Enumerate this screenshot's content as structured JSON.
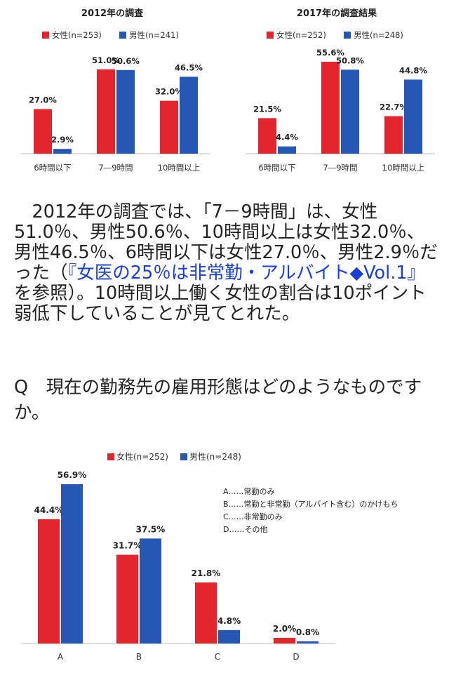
{
  "colors": {
    "female": "#e3262e",
    "male": "#2757b5",
    "axis": "#bfbfbf",
    "link": "#1a3fd6"
  },
  "chart_data": [
    {
      "type": "bar",
      "title": "2012年の調査",
      "categories": [
        "6時間以下",
        "7―9時間",
        "10時間以上"
      ],
      "series": [
        {
          "name": "女性(n=253)",
          "values": [
            27.0,
            51.0,
            32.0
          ],
          "labels": [
            "27.0%",
            "51.0%",
            "32.0%"
          ]
        },
        {
          "name": "男性(n=241)",
          "values": [
            2.9,
            50.6,
            46.5
          ],
          "labels": [
            "2.9%",
            "50.6%",
            "46.5%"
          ]
        }
      ],
      "ylim": [
        0,
        60
      ],
      "legend": "top-center",
      "grid": false
    },
    {
      "type": "bar",
      "title": "2017年の調査結果",
      "categories": [
        "6時間以下",
        "7―9時間",
        "10時間以上"
      ],
      "series": [
        {
          "name": "女性(n=252)",
          "values": [
            21.5,
            55.6,
            22.7
          ],
          "labels": [
            "21.5%",
            "55.6%",
            "22.7%"
          ]
        },
        {
          "name": "男性(n=248)",
          "values": [
            4.4,
            50.8,
            44.8
          ],
          "labels": [
            "4.4%",
            "50.8%",
            "44.8%"
          ]
        }
      ],
      "ylim": [
        0,
        60
      ],
      "legend": "top-center",
      "grid": false
    },
    {
      "type": "bar",
      "title": "",
      "categories": [
        "A",
        "B",
        "C",
        "D"
      ],
      "series": [
        {
          "name": "女性(n=252)",
          "values": [
            44.4,
            31.7,
            21.8,
            2.0
          ],
          "labels": [
            "44.4%",
            "31.7%",
            "21.8%",
            "2.0%"
          ]
        },
        {
          "name": "男性(n=248)",
          "values": [
            56.9,
            37.5,
            4.8,
            0.8
          ],
          "labels": [
            "56.9%",
            "37.5%",
            "4.8%",
            "0.8%"
          ]
        }
      ],
      "notes": [
        "A……常勤のみ",
        "B……常勤と非常勤（アルバイト含む）のかけもち",
        "C……非常勤のみ",
        "D……その他"
      ],
      "ylim": [
        0,
        60
      ],
      "legend": "top-center",
      "grid": false
    }
  ],
  "article": {
    "paragraph_part1": "　2012年の調査では、「7－9時間」は、女性51.0％、男性50.6％、10時間以上は女性32.0％、男性46.5％、6時間以下は女性27.0％、男性2.9％だった（",
    "paragraph_link": "『女医の25％は非常勤・アルバイト◆Vol.1』",
    "paragraph_part2": "を参照）。10時間以上働く女性の割合は10ポイント弱低下していることが見てとれた。",
    "question": "Q　現在の勤務先の雇用形態はどのようなものですか。"
  }
}
